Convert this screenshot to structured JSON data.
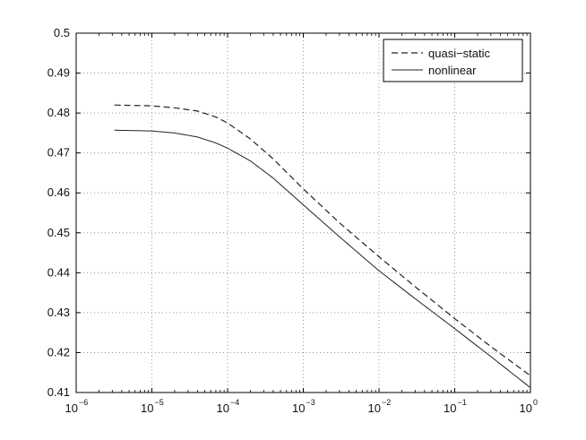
{
  "chart_data": {
    "type": "line",
    "title": "",
    "xlabel": "",
    "ylabel": "",
    "xscale": "log",
    "xlim": [
      1e-06,
      1
    ],
    "ylim": [
      0.41,
      0.5
    ],
    "grid": true,
    "legend_position": "top-right",
    "x_ticks": [
      {
        "base": "10",
        "exp": "−6"
      },
      {
        "base": "10",
        "exp": "−5"
      },
      {
        "base": "10",
        "exp": "−4"
      },
      {
        "base": "10",
        "exp": "−3"
      },
      {
        "base": "10",
        "exp": "−2"
      },
      {
        "base": "10",
        "exp": "−1"
      },
      {
        "base": "10",
        "exp": "0"
      }
    ],
    "y_ticks": [
      "0.41",
      "0.42",
      "0.43",
      "0.44",
      "0.45",
      "0.46",
      "0.47",
      "0.48",
      "0.49",
      "0.5"
    ],
    "series": [
      {
        "name": "quasi−static",
        "style": "dashed",
        "color": "#222222",
        "x": [
          3.2e-06,
          1e-05,
          2e-05,
          4e-05,
          7e-05,
          0.0001,
          0.0002,
          0.0004,
          0.001,
          0.003,
          0.01,
          0.03,
          0.1,
          0.3,
          1
        ],
        "y": [
          0.482,
          0.4818,
          0.4813,
          0.4805,
          0.479,
          0.4775,
          0.4735,
          0.4685,
          0.461,
          0.4525,
          0.444,
          0.4365,
          0.4285,
          0.4215,
          0.4142
        ]
      },
      {
        "name": "nonlinear",
        "style": "solid",
        "color": "#222222",
        "x": [
          3.2e-06,
          1e-05,
          2e-05,
          4e-05,
          7e-05,
          0.0001,
          0.0002,
          0.0004,
          0.001,
          0.003,
          0.01,
          0.03,
          0.1,
          0.3,
          1
        ],
        "y": [
          0.4757,
          0.4755,
          0.475,
          0.474,
          0.4725,
          0.4712,
          0.468,
          0.4637,
          0.457,
          0.449,
          0.4405,
          0.4335,
          0.426,
          0.419,
          0.4112
        ]
      }
    ]
  }
}
